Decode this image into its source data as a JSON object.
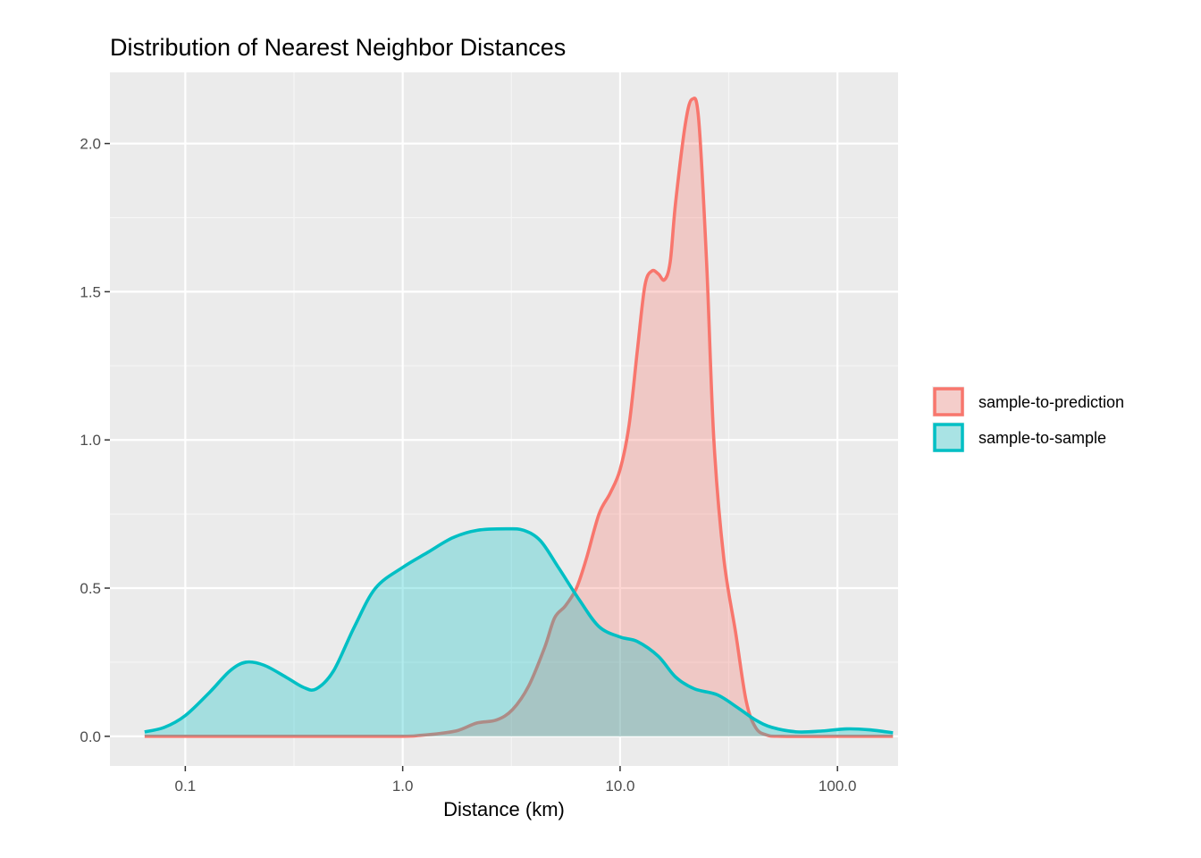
{
  "chart_data": {
    "type": "area",
    "title": "Distribution of Nearest Neighbor Distances",
    "xlabel": "Distance (km)",
    "ylabel": "",
    "x_scale": "log10",
    "xlim": [
      0.045,
      190
    ],
    "ylim": [
      -0.1,
      2.24
    ],
    "x_ticks": [
      {
        "value": 0.1,
        "label": "0.1"
      },
      {
        "value": 1,
        "label": "1.0"
      },
      {
        "value": 10,
        "label": "10.0"
      },
      {
        "value": 100,
        "label": "100.0"
      }
    ],
    "y_ticks": [
      {
        "value": 0,
        "label": "0.0"
      },
      {
        "value": 0.5,
        "label": "0.5"
      },
      {
        "value": 1,
        "label": "1.0"
      },
      {
        "value": 1.5,
        "label": "1.5"
      },
      {
        "value": 2,
        "label": "2.0"
      }
    ],
    "grid": true,
    "legend_position": "right",
    "series": [
      {
        "name": "sample-to-prediction",
        "color": "#F8766D",
        "points": [
          [
            0.065,
            0.0
          ],
          [
            0.1,
            0.0
          ],
          [
            0.5,
            0.0
          ],
          [
            1.0,
            0.0
          ],
          [
            1.2,
            0.003
          ],
          [
            1.5,
            0.01
          ],
          [
            1.8,
            0.02
          ],
          [
            2.2,
            0.045
          ],
          [
            2.7,
            0.055
          ],
          [
            3.2,
            0.09
          ],
          [
            3.8,
            0.17
          ],
          [
            4.5,
            0.3
          ],
          [
            5.0,
            0.4
          ],
          [
            5.6,
            0.44
          ],
          [
            6.3,
            0.5
          ],
          [
            7.0,
            0.6
          ],
          [
            8.0,
            0.75
          ],
          [
            9.0,
            0.82
          ],
          [
            10.0,
            0.9
          ],
          [
            11.0,
            1.05
          ],
          [
            12.0,
            1.3
          ],
          [
            13.0,
            1.52
          ],
          [
            14.0,
            1.57
          ],
          [
            15.0,
            1.56
          ],
          [
            16.0,
            1.54
          ],
          [
            17.0,
            1.6
          ],
          [
            18.0,
            1.8
          ],
          [
            20.0,
            2.07
          ],
          [
            21.5,
            2.15
          ],
          [
            23.0,
            2.08
          ],
          [
            25.0,
            1.6
          ],
          [
            27.0,
            1.0
          ],
          [
            30.0,
            0.6
          ],
          [
            34.0,
            0.35
          ],
          [
            38.0,
            0.12
          ],
          [
            42.0,
            0.03
          ],
          [
            47.0,
            0.005
          ],
          [
            55.0,
            0.0
          ],
          [
            100.0,
            0.0
          ],
          [
            180.0,
            0.0
          ]
        ]
      },
      {
        "name": "sample-to-sample",
        "color": "#00BFC4",
        "points": [
          [
            0.065,
            0.015
          ],
          [
            0.08,
            0.03
          ],
          [
            0.1,
            0.07
          ],
          [
            0.13,
            0.15
          ],
          [
            0.16,
            0.22
          ],
          [
            0.19,
            0.25
          ],
          [
            0.23,
            0.24
          ],
          [
            0.29,
            0.2
          ],
          [
            0.35,
            0.165
          ],
          [
            0.4,
            0.16
          ],
          [
            0.48,
            0.22
          ],
          [
            0.6,
            0.37
          ],
          [
            0.75,
            0.5
          ],
          [
            1.0,
            0.57
          ],
          [
            1.3,
            0.62
          ],
          [
            1.7,
            0.67
          ],
          [
            2.2,
            0.695
          ],
          [
            3.0,
            0.7
          ],
          [
            3.6,
            0.695
          ],
          [
            4.3,
            0.66
          ],
          [
            5.2,
            0.57
          ],
          [
            6.5,
            0.46
          ],
          [
            8.0,
            0.37
          ],
          [
            10.0,
            0.335
          ],
          [
            12.0,
            0.32
          ],
          [
            15.0,
            0.27
          ],
          [
            18.0,
            0.2
          ],
          [
            22.0,
            0.16
          ],
          [
            28.0,
            0.14
          ],
          [
            35.0,
            0.095
          ],
          [
            42.0,
            0.055
          ],
          [
            50.0,
            0.03
          ],
          [
            65.0,
            0.015
          ],
          [
            85.0,
            0.018
          ],
          [
            110.0,
            0.025
          ],
          [
            140.0,
            0.022
          ],
          [
            180.0,
            0.012
          ]
        ]
      }
    ]
  }
}
